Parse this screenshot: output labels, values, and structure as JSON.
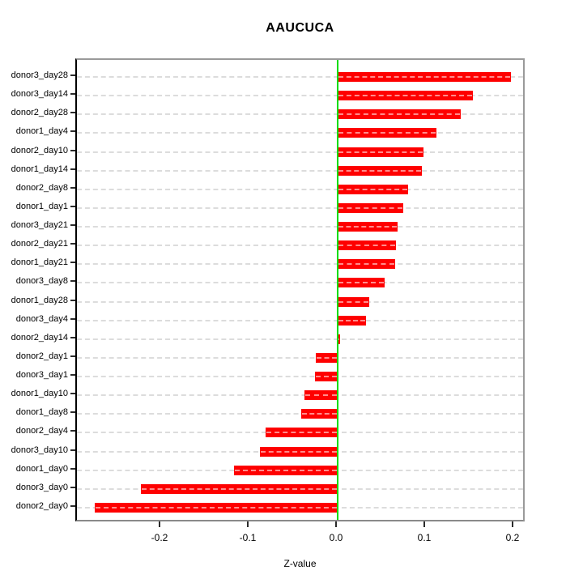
{
  "chart_data": {
    "type": "bar",
    "orientation": "horizontal",
    "title": "AAUCUCA",
    "xlabel": "Z-value",
    "ylabel": "",
    "categories": [
      "donor3_day28",
      "donor3_day14",
      "donor2_day28",
      "donor1_day4",
      "donor2_day10",
      "donor1_day14",
      "donor2_day8",
      "donor1_day1",
      "donor3_day21",
      "donor2_day21",
      "donor1_day21",
      "donor3_day8",
      "donor1_day28",
      "donor3_day4",
      "donor2_day14",
      "donor2_day1",
      "donor3_day1",
      "donor1_day10",
      "donor1_day8",
      "donor2_day4",
      "donor3_day10",
      "donor1_day0",
      "donor3_day0",
      "donor2_day0"
    ],
    "values": [
      0.196,
      0.153,
      0.139,
      0.112,
      0.097,
      0.095,
      0.08,
      0.074,
      0.068,
      0.066,
      0.065,
      0.053,
      0.036,
      0.032,
      0.003,
      -0.025,
      -0.026,
      -0.038,
      -0.041,
      -0.082,
      -0.088,
      -0.117,
      -0.223,
      -0.275
    ],
    "x_ticks": [
      "-0.2",
      "-0.1",
      "0.0",
      "0.1",
      "0.2"
    ],
    "x_tick_values": [
      -0.2,
      -0.1,
      0.0,
      0.1,
      0.2
    ],
    "xlim": [
      -0.295,
      0.213
    ],
    "grid": "horizontal dashed line per category",
    "legend": "none",
    "colors": {
      "bar_fill": "#fe0000",
      "bar_dash_overlay": "#ffb3b3",
      "zero_line": "#00dd00",
      "gridline": "#dcdcdc",
      "frame": "#9a9a9a",
      "text": "#000000",
      "background": "#ffffff"
    }
  }
}
